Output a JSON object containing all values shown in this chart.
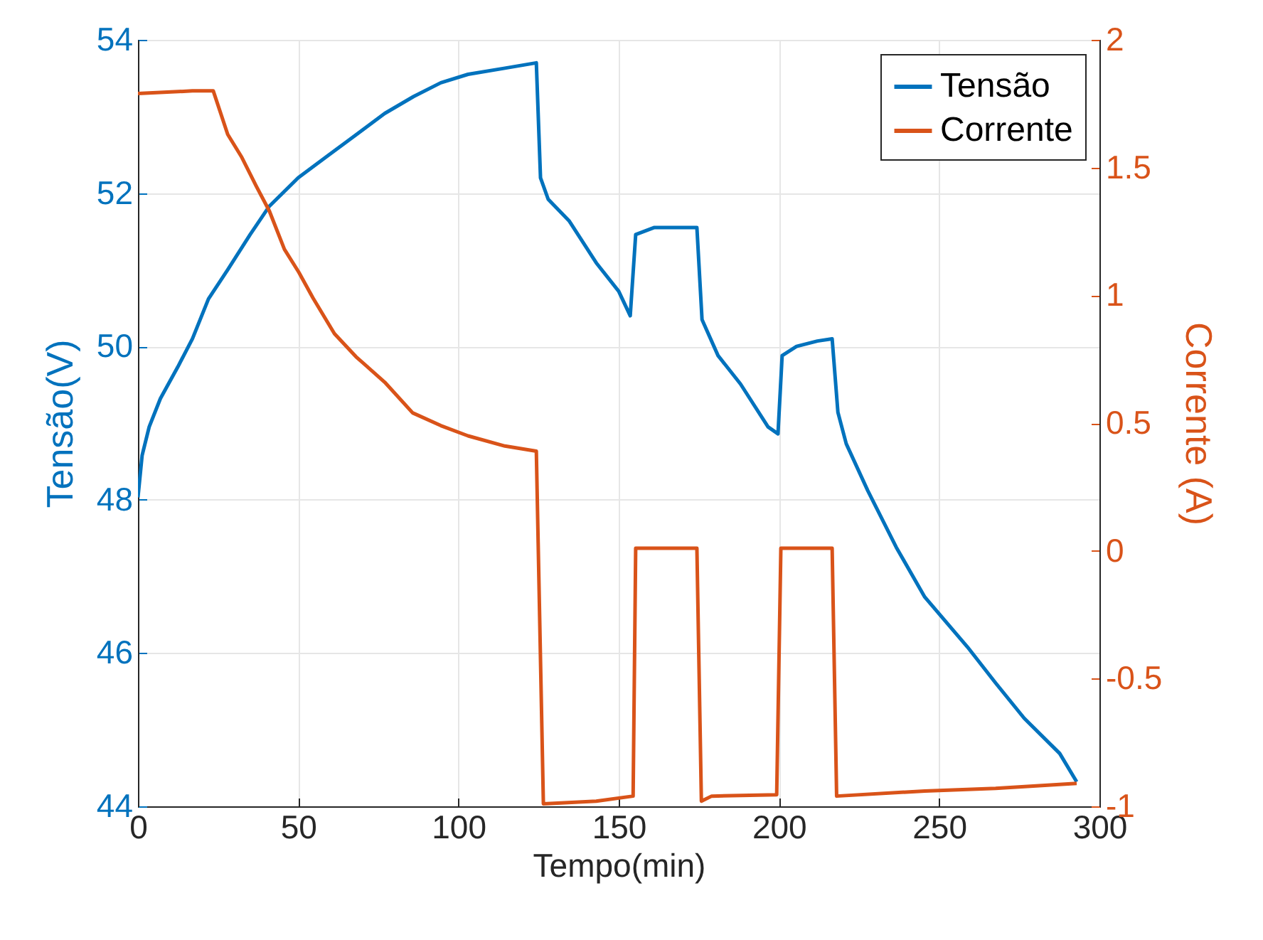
{
  "chart_data": {
    "type": "line",
    "xlabel": "Tempo(min)",
    "ylabel": "Tensão(V)",
    "y2label": "Corrente (A)",
    "xlim": [
      0,
      300
    ],
    "xticks": [
      0,
      50,
      100,
      150,
      200,
      250,
      300
    ],
    "ylim": [
      44,
      54
    ],
    "yticks": [
      44,
      46,
      48,
      50,
      52,
      54
    ],
    "y2lim": [
      -1,
      2
    ],
    "y2ticks": [
      -1,
      -0.5,
      0,
      0.5,
      1,
      1.5,
      2
    ],
    "grid": true,
    "legend": "top right",
    "marker": "none",
    "line_style": "solid",
    "series": [
      {
        "name": "Tensão",
        "color": "#0072bd",
        "x": [
          0,
          1.3,
          3.5,
          7,
          12.4,
          17,
          22,
          28,
          35,
          41,
          50,
          59,
          68,
          77,
          86,
          94.5,
          103,
          114.5,
          124.3,
          125.6,
          128,
          134.5,
          143,
          150,
          153.6,
          155.3,
          161,
          174.4,
          176,
          181,
          188,
          196.6,
          199.7,
          201,
          205.5,
          212,
          216.6,
          218.4,
          221,
          227.7,
          236.6,
          245.5,
          258.8,
          267.6,
          276.5,
          287.6,
          292.9
        ],
        "values": [
          48.03,
          48.58,
          48.95,
          49.32,
          49.73,
          50.1,
          50.62,
          51.0,
          51.46,
          51.83,
          52.2,
          52.48,
          52.76,
          53.04,
          53.26,
          53.44,
          53.55,
          53.63,
          53.7,
          52.2,
          51.92,
          51.64,
          51.09,
          50.72,
          50.4,
          51.46,
          51.55,
          51.55,
          50.35,
          49.88,
          49.51,
          48.95,
          48.86,
          49.88,
          50.0,
          50.07,
          50.1,
          49.14,
          48.73,
          48.12,
          47.38,
          46.73,
          46.08,
          45.61,
          45.15,
          44.69,
          44.32
        ]
      },
      {
        "name": "Corrente",
        "color": "#d95319",
        "axis": "y2",
        "x": [
          0,
          17,
          23.5,
          28,
          32.4,
          36.8,
          41,
          45.7,
          50.2,
          54.6,
          61.3,
          68,
          77,
          85.7,
          94.5,
          103,
          114.5,
          124.3,
          126.5,
          143,
          154.5,
          155.3,
          174.4,
          175.8,
          179,
          199.3,
          200.6,
          216.6,
          218,
          245.5,
          267.6,
          292.9
        ],
        "values": [
          1.79,
          1.8,
          1.8,
          1.63,
          1.54,
          1.43,
          1.33,
          1.18,
          1.09,
          0.99,
          0.85,
          0.76,
          0.66,
          0.54,
          0.49,
          0.45,
          0.41,
          0.39,
          -0.99,
          -0.98,
          -0.96,
          0.01,
          0.01,
          -0.98,
          -0.96,
          -0.955,
          0.01,
          0.01,
          -0.96,
          -0.94,
          -0.93,
          -0.91
        ]
      }
    ]
  }
}
